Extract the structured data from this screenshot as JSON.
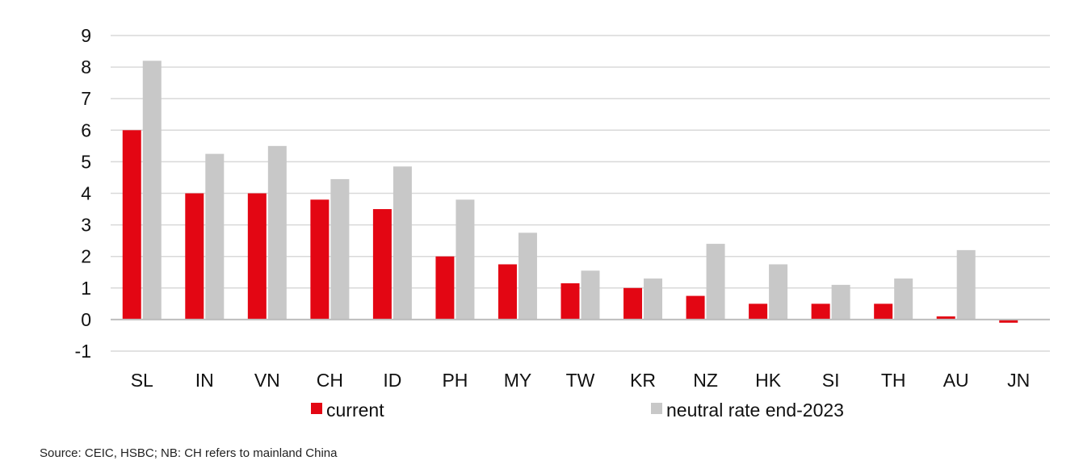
{
  "chart_data": {
    "type": "bar",
    "categories": [
      "SL",
      "IN",
      "VN",
      "CH",
      "ID",
      "PH",
      "MY",
      "TW",
      "KR",
      "NZ",
      "HK",
      "SI",
      "TH",
      "AU",
      "JN"
    ],
    "series": [
      {
        "name": "current",
        "color": "#e30613",
        "values": [
          6.0,
          4.0,
          4.0,
          3.8,
          3.5,
          2.0,
          1.75,
          1.15,
          1.0,
          0.75,
          0.5,
          0.5,
          0.5,
          0.1,
          -0.1
        ]
      },
      {
        "name": "neutral rate end-2023",
        "color": "#c8c8c8",
        "values": [
          8.2,
          5.25,
          5.5,
          4.45,
          4.85,
          3.8,
          2.75,
          1.55,
          1.3,
          2.4,
          1.75,
          1.1,
          1.3,
          2.2,
          0.0
        ]
      }
    ],
    "yticks": [
      "9",
      "8",
      "7",
      "6",
      "5",
      "4",
      "3",
      "2",
      "1",
      "0",
      "-1"
    ],
    "ylim": [
      -1,
      9
    ],
    "grid": true,
    "legend_position": "bottom"
  },
  "source_note": "Source: CEIC, HSBC; NB: CH refers to mainland China"
}
